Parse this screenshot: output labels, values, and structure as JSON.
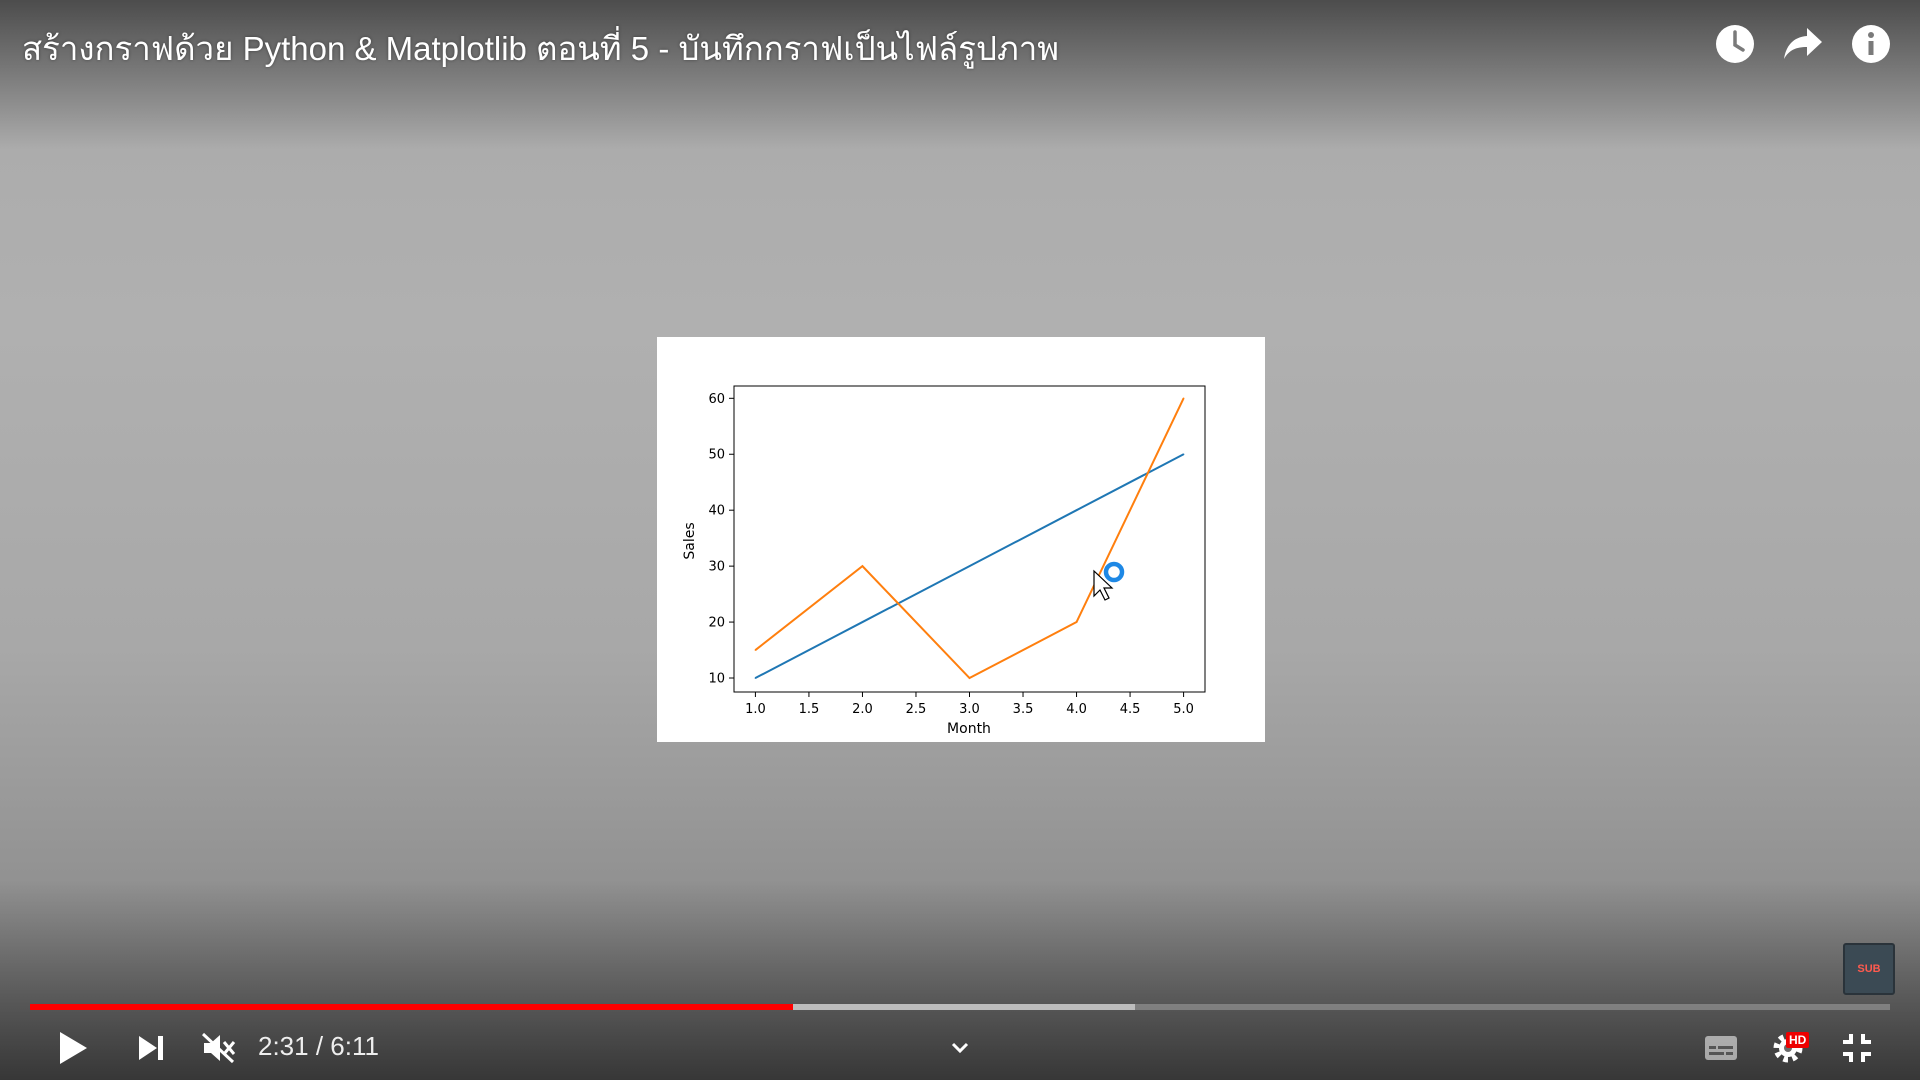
{
  "player": {
    "title": "สร้างกราฟด้วย Python & Matplotlib ตอนที่ 5 - บันทึกกราฟเป็นไฟล์รูปภาพ",
    "top_icons": [
      "watch-later-icon",
      "share-icon",
      "info-icon"
    ],
    "time": {
      "current": "2:31",
      "separator": " / ",
      "duration": "6:11"
    },
    "progress": {
      "played_fraction": 0.41,
      "buffered_fraction": 0.594
    },
    "accent_color": "#ff0000",
    "sub_badge": "SUB",
    "hd_badge": "HD",
    "controls": [
      "play-icon",
      "next-icon",
      "mute-icon",
      "chevron-down-icon",
      "subtitles-icon",
      "settings-icon",
      "exit-fullscreen-icon"
    ]
  },
  "chart_data": {
    "type": "line",
    "xlabel": "Month",
    "ylabel": "Sales",
    "xlim": [
      0.8,
      5.2
    ],
    "ylim": [
      7.5,
      62.2
    ],
    "xticks": [
      "1.0",
      "1.5",
      "2.0",
      "2.5",
      "3.0",
      "3.5",
      "4.0",
      "4.5",
      "5.0"
    ],
    "yticks": [
      "10",
      "20",
      "30",
      "40",
      "50",
      "60"
    ],
    "series": [
      {
        "color": "#1f77b4",
        "x": [
          1,
          2,
          3,
          4,
          5
        ],
        "y": [
          10,
          20,
          30,
          40,
          50
        ]
      },
      {
        "color": "#ff7f0e",
        "x": [
          1,
          2,
          3,
          4,
          5
        ],
        "y": [
          15,
          30,
          10,
          20,
          60
        ]
      }
    ]
  }
}
